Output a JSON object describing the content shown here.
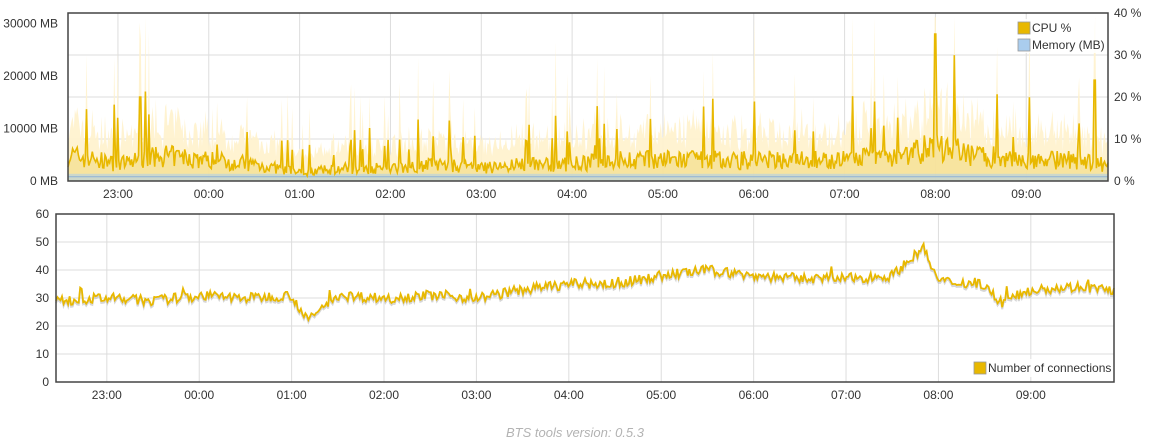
{
  "footer": {
    "version_text": "BTS tools version: 0.5.3"
  },
  "colors": {
    "cpu": "#e8b800",
    "cpu_light": "#fff2cc",
    "memory": "#aacdee",
    "grid": "#dddddd",
    "frame": "#444444"
  },
  "chart_data": [
    {
      "type": "line",
      "title": "",
      "xlabel": "",
      "ylabel": "",
      "x_ticks": [
        "23:00",
        "00:00",
        "01:00",
        "02:00",
        "03:00",
        "04:00",
        "05:00",
        "06:00",
        "07:00",
        "08:00",
        "09:00"
      ],
      "y_left_ticks": [
        "0 MB",
        "10000 MB",
        "20000 MB",
        "30000 MB"
      ],
      "y_right_ticks": [
        "0 %",
        "10 %",
        "20 %",
        "30 %",
        "40 %"
      ],
      "y_left_range": [
        0,
        32000
      ],
      "y_right_range": [
        0,
        40
      ],
      "x_range_hours": [
        22.45,
        9.9
      ],
      "grid": true,
      "legend_position": "top-right",
      "legend": [
        "CPU %",
        "Memory (MB)"
      ],
      "series": [
        {
          "name": "CPU %",
          "axis": "right",
          "x": [
            "22:30",
            "23:00",
            "23:30",
            "00:00",
            "00:30",
            "01:00",
            "01:30",
            "02:00",
            "02:30",
            "03:00",
            "03:30",
            "04:00",
            "04:30",
            "05:00",
            "05:30",
            "06:00",
            "06:30",
            "07:00",
            "07:30",
            "08:00",
            "08:30",
            "09:00",
            "09:30",
            "09:50"
          ],
          "values": [
            6,
            4,
            6,
            5,
            4,
            2,
            3,
            3,
            4,
            3,
            4,
            4,
            5,
            5,
            5,
            5,
            5,
            5,
            6,
            8,
            6,
            5,
            5,
            4
          ]
        },
        {
          "name": "Memory (MB)",
          "axis": "left",
          "x": [
            "22:30",
            "09:50"
          ],
          "values": [
            800,
            800
          ]
        }
      ],
      "annotations": [
        {
          "x": "08:00",
          "y": 35,
          "series": "CPU %"
        },
        {
          "x": "09:45",
          "y": 24,
          "series": "CPU %"
        },
        {
          "x": "23:15",
          "y": 20,
          "series": "CPU %"
        }
      ]
    },
    {
      "type": "line",
      "title": "",
      "xlabel": "",
      "ylabel": "",
      "x_ticks": [
        "23:00",
        "00:00",
        "01:00",
        "02:00",
        "03:00",
        "04:00",
        "05:00",
        "06:00",
        "07:00",
        "08:00",
        "09:00"
      ],
      "y_ticks": [
        "0",
        "10",
        "20",
        "30",
        "40",
        "50",
        "60"
      ],
      "y_range": [
        0,
        60
      ],
      "x_range_hours": [
        22.45,
        9.9
      ],
      "grid": true,
      "legend_position": "bottom-right",
      "legend": [
        "Number of connections"
      ],
      "series": [
        {
          "name": "Number of connections",
          "x": [
            "22:30",
            "23:00",
            "23:30",
            "00:00",
            "00:30",
            "01:00",
            "01:10",
            "01:30",
            "02:00",
            "02:30",
            "03:00",
            "03:30",
            "04:00",
            "04:30",
            "05:00",
            "05:30",
            "06:00",
            "06:30",
            "07:00",
            "07:30",
            "07:50",
            "08:00",
            "08:30",
            "08:40",
            "09:00",
            "09:30",
            "09:50"
          ],
          "values": [
            29,
            30,
            29,
            31,
            30,
            31,
            22,
            31,
            30,
            31,
            30,
            33,
            35,
            35,
            38,
            40,
            38,
            37,
            37,
            38,
            48,
            36,
            35,
            28,
            33,
            34,
            33
          ]
        }
      ]
    }
  ]
}
